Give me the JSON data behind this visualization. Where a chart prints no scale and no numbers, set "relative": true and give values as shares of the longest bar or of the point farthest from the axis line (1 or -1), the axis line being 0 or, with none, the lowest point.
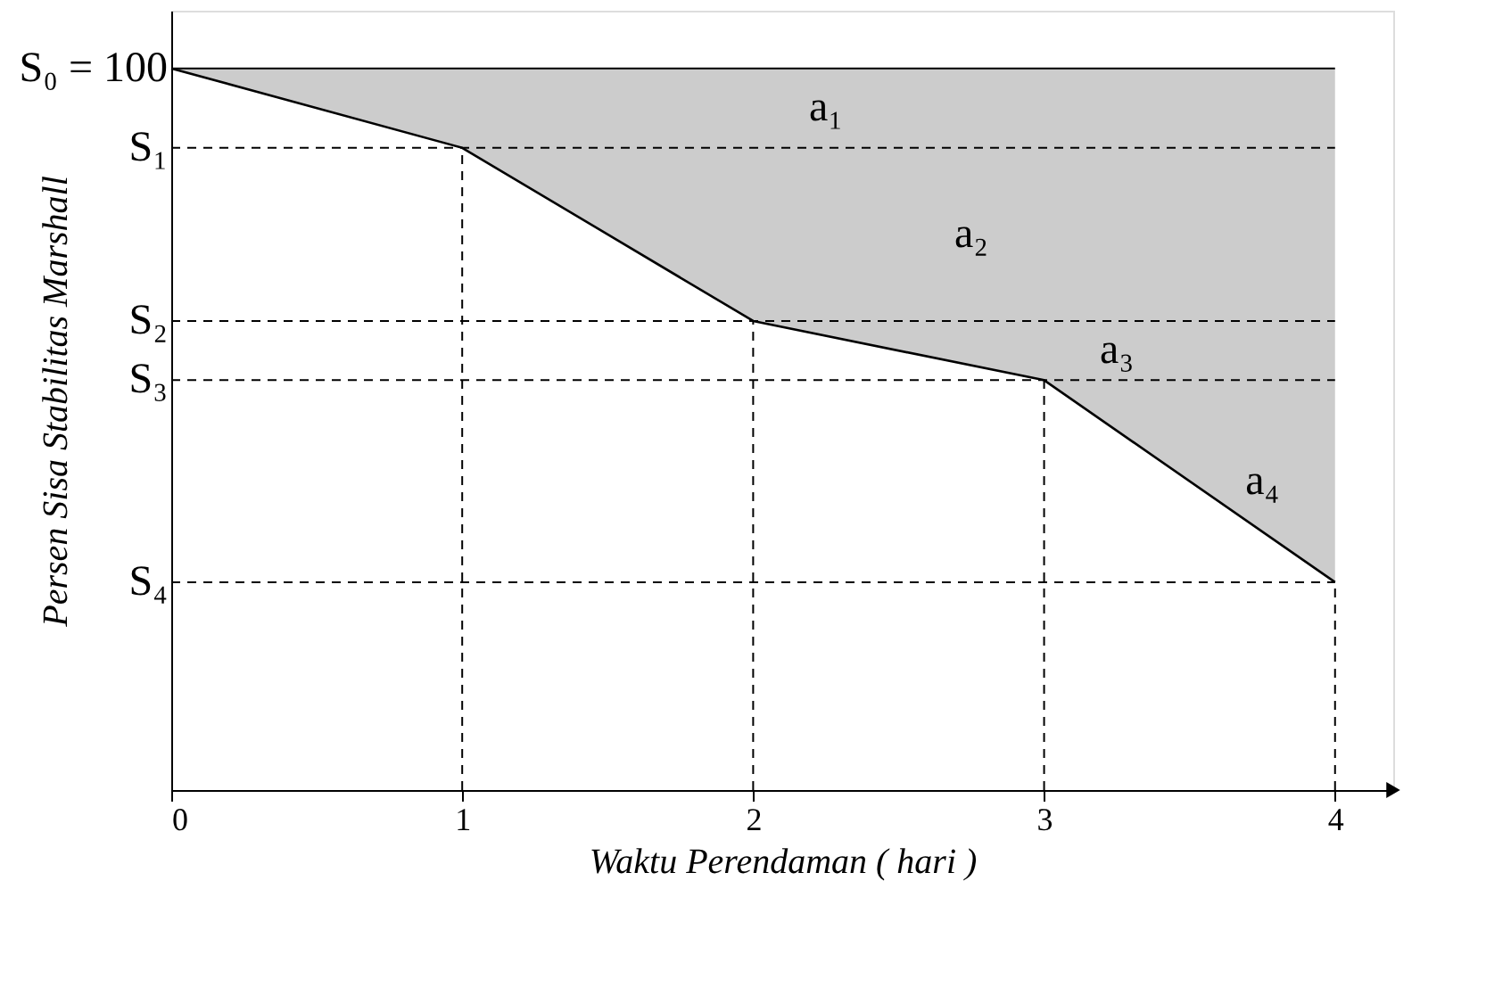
{
  "chart_data": {
    "type": "line",
    "relative": true,
    "xlabel": "Waktu Perendaman ( hari )",
    "ylabel": "Persen Sisa Stabilitas Marshall",
    "x": [
      0,
      1,
      2,
      3,
      4
    ],
    "xlim": [
      0,
      4.2
    ],
    "xticks": [
      0,
      1,
      2,
      3,
      4
    ],
    "series": [
      {
        "color": "#000000",
        "values": [
          1,
          0.89,
          0.65,
          0.568,
          0.288
        ],
        "lower": [
          1,
          0.89,
          0.65,
          0.568,
          0.288
        ],
        "upper": [
          1,
          1,
          1,
          1,
          1
        ]
      }
    ],
    "ref_lines": [
      {
        "axis": "y",
        "value": 1,
        "label": "S₀ = 100",
        "line_style": "solid"
      },
      {
        "axis": "y",
        "value": 0.89,
        "label": "S₁",
        "line_style": "dashed"
      },
      {
        "axis": "y",
        "value": 0.65,
        "label": "S₂",
        "line_style": "dashed"
      },
      {
        "axis": "y",
        "value": 0.568,
        "label": "S₃",
        "line_style": "dashed"
      },
      {
        "axis": "y",
        "value": 0.288,
        "label": "S₄",
        "line_style": "dashed"
      },
      {
        "axis": "x",
        "value": 1,
        "line_style": "dashed"
      },
      {
        "axis": "x",
        "value": 2,
        "line_style": "dashed"
      },
      {
        "axis": "x",
        "value": 3,
        "line_style": "dashed"
      },
      {
        "axis": "x",
        "value": 4,
        "line_style": "dashed"
      }
    ],
    "annotations": [
      "a₁",
      "a₂",
      "a₃",
      "a₄"
    ],
    "grid": false,
    "marker": "none",
    "line_style": "solid"
  }
}
